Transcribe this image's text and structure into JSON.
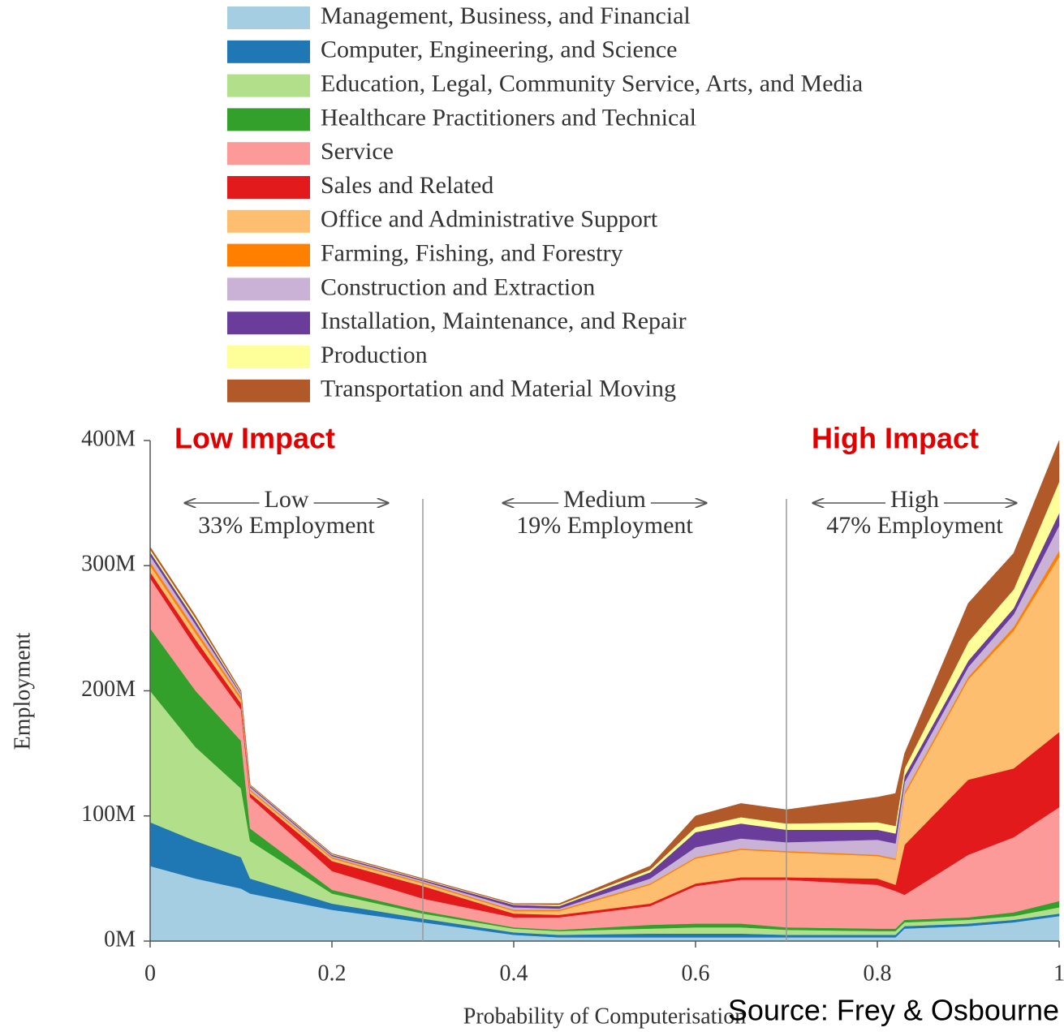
{
  "chart_data": {
    "type": "stacked_area",
    "x_label": "Probability of Computerisation",
    "y_label": "Employment",
    "x": [
      0,
      0.05,
      0.1,
      0.11,
      0.2,
      0.3,
      0.4,
      0.45,
      0.55,
      0.6,
      0.65,
      0.7,
      0.8,
      0.82,
      0.83,
      0.9,
      0.95,
      1.0
    ],
    "xlim": [
      0,
      1
    ],
    "xticks": [
      0,
      0.2,
      0.4,
      0.6,
      0.8,
      1
    ],
    "ylim": [
      0,
      400
    ],
    "yticks": [
      {
        "value": 0,
        "label": "0M"
      },
      {
        "value": 100,
        "label": "100M"
      },
      {
        "value": 200,
        "label": "200M"
      },
      {
        "value": 300,
        "label": "300M"
      },
      {
        "value": 400,
        "label": "400M"
      }
    ],
    "series": [
      {
        "name": "Management, Business, and Financial",
        "color": "#a6cee3",
        "values": [
          60,
          50,
          42,
          38,
          25,
          15,
          5,
          3,
          3,
          3,
          3,
          3,
          3,
          3,
          10,
          12,
          15,
          20
        ]
      },
      {
        "name": "Computer, Engineering, and Science",
        "color": "#1f78b4",
        "values": [
          35,
          30,
          25,
          12,
          5,
          3,
          2,
          2,
          3,
          3,
          3,
          2,
          2,
          2,
          2,
          2,
          2,
          2
        ]
      },
      {
        "name": "Education, Legal, Community Service, Arts, and Media",
        "color": "#b2df8a",
        "values": [
          105,
          75,
          55,
          30,
          8,
          4,
          3,
          3,
          4,
          5,
          5,
          4,
          3,
          3,
          3,
          3,
          3,
          5
        ]
      },
      {
        "name": "Healthcare Practitioners and Technical",
        "color": "#33a02c",
        "values": [
          50,
          45,
          38,
          10,
          3,
          2,
          1,
          1,
          3,
          3,
          3,
          2,
          2,
          2,
          2,
          2,
          3,
          5
        ]
      },
      {
        "name": "Service",
        "color": "#fb9a99",
        "values": [
          40,
          35,
          25,
          25,
          15,
          10,
          8,
          10,
          15,
          30,
          35,
          38,
          35,
          30,
          20,
          50,
          60,
          75
        ]
      },
      {
        "name": "Sales and Related",
        "color": "#e31a1c",
        "values": [
          5,
          6,
          5,
          3,
          8,
          10,
          3,
          2,
          2,
          2,
          2,
          2,
          5,
          5,
          40,
          60,
          55,
          60
        ]
      },
      {
        "name": "Office and Administrative Support",
        "color": "#fdbf6f",
        "values": [
          5,
          5,
          3,
          2,
          2,
          2,
          2,
          3,
          15,
          20,
          22,
          20,
          18,
          20,
          40,
          80,
          110,
          140
        ]
      },
      {
        "name": "Farming, Fishing, and Forestry",
        "color": "#ff7f00",
        "values": [
          3,
          3,
          2,
          1,
          1,
          1,
          1,
          1,
          1,
          1,
          1,
          1,
          1,
          1,
          2,
          2,
          3,
          5
        ]
      },
      {
        "name": "Construction and Extraction",
        "color": "#cab2d6",
        "values": [
          5,
          4,
          2,
          2,
          1,
          1,
          2,
          1,
          4,
          8,
          8,
          7,
          12,
          12,
          8,
          8,
          10,
          20
        ]
      },
      {
        "name": "Installation, Maintenance, and Repair",
        "color": "#6a3d9a",
        "values": [
          3,
          3,
          1,
          1,
          1,
          1,
          2,
          2,
          5,
          12,
          12,
          10,
          8,
          8,
          5,
          5,
          5,
          10
        ]
      },
      {
        "name": "Production",
        "color": "#ffff99",
        "values": [
          2,
          2,
          1,
          0.5,
          0.5,
          0.5,
          0.5,
          1,
          2,
          4,
          5,
          5,
          6,
          6,
          6,
          15,
          15,
          25
        ]
      },
      {
        "name": "Transportation and Material Moving",
        "color": "#b15928",
        "values": [
          2,
          2,
          1,
          0.5,
          0.5,
          0.5,
          0.5,
          1,
          3,
          9,
          11,
          11,
          20,
          26,
          12,
          31,
          29,
          33
        ]
      }
    ],
    "regions": [
      {
        "name": "Low",
        "share": "33% Employment",
        "start": 0,
        "end": 0.3
      },
      {
        "name": "Medium",
        "share": "19% Employment",
        "start": 0.3,
        "end": 0.7
      },
      {
        "name": "High",
        "share": "47% Employment",
        "start": 0.7,
        "end": 1
      }
    ],
    "annotations": [
      "Low Impact",
      "High Impact"
    ],
    "source": "Source: Frey & Osbourne"
  }
}
